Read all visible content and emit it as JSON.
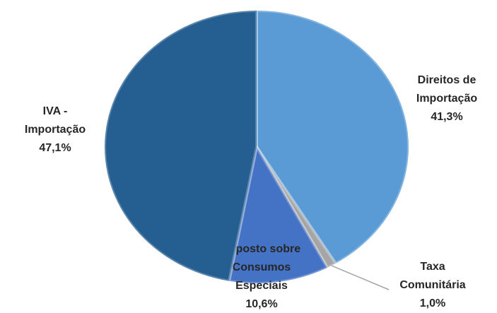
{
  "chart_data": {
    "type": "pie",
    "categories": [
      "Direitos de\nImportação",
      "Taxa\nComunitária",
      "Imposto sobre\nConsumos\nEspeciais",
      "IVA -\nImportação"
    ],
    "values": [
      41.3,
      1.0,
      10.6,
      47.1
    ],
    "value_labels": [
      "41,3%",
      "1,0%",
      "10,6%",
      "47,1%"
    ],
    "colors": [
      "#5b9bd5",
      "#a5a5a5",
      "#4472c4",
      "#255e91"
    ]
  }
}
